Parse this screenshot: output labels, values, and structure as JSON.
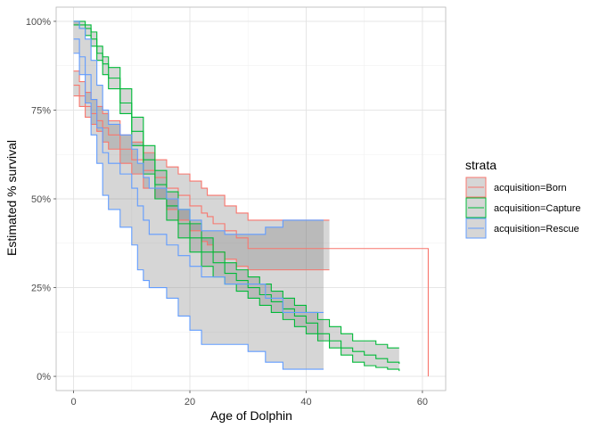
{
  "chart_data": {
    "type": "line",
    "xlabel": "Age of Dolphin",
    "ylabel": "Estimated % survival",
    "xlim": [
      -3.0,
      64.0
    ],
    "ylim": [
      -0.04,
      1.04
    ],
    "x_ticks": [
      0,
      20,
      40,
      60
    ],
    "x_minor_ticks": [
      10,
      30,
      50
    ],
    "y_ticks": [
      0,
      0.25,
      0.5,
      0.75,
      1.0
    ],
    "y_minor_ticks": [
      0.125,
      0.375,
      0.625,
      0.875
    ],
    "x_tick_labels": [
      "0",
      "20",
      "40",
      "60"
    ],
    "y_tick_labels": [
      "0%",
      "25%",
      "50%",
      "75%",
      "100%"
    ],
    "grid": true,
    "legend": {
      "title": "strata",
      "position": "right"
    },
    "series": [
      {
        "name": "acquisition=Born",
        "color": "#f8766d",
        "x": [
          0,
          1,
          2,
          3,
          4,
          5,
          6,
          8,
          10,
          12,
          14,
          16,
          18,
          20,
          22,
          23,
          24,
          26,
          28,
          30,
          44,
          61
        ],
        "y": [
          0.82,
          0.79,
          0.76,
          0.74,
          0.72,
          0.7,
          0.68,
          0.64,
          0.61,
          0.58,
          0.56,
          0.53,
          0.51,
          0.48,
          0.46,
          0.45,
          0.43,
          0.41,
          0.39,
          0.36,
          0.36,
          0.0
        ],
        "lower": [
          0.79,
          0.76,
          0.73,
          0.71,
          0.69,
          0.66,
          0.64,
          0.6,
          0.57,
          0.53,
          0.5,
          0.47,
          0.44,
          0.41,
          0.38,
          0.37,
          0.35,
          0.33,
          0.31,
          0.3,
          0.3,
          null
        ],
        "upper": [
          0.86,
          0.83,
          0.8,
          0.78,
          0.76,
          0.74,
          0.72,
          0.68,
          0.66,
          0.63,
          0.61,
          0.59,
          0.57,
          0.55,
          0.53,
          0.51,
          0.51,
          0.48,
          0.46,
          0.44,
          0.44,
          null
        ]
      },
      {
        "name": "acquisition=Capture",
        "color": "#00ba38",
        "x": [
          0,
          1,
          2,
          3,
          4,
          5,
          6,
          8,
          10,
          12,
          14,
          16,
          18,
          20,
          22,
          24,
          26,
          28,
          30,
          32,
          34,
          36,
          38,
          40,
          42,
          44,
          46,
          48,
          50,
          52,
          54,
          56
        ],
        "y": [
          1.0,
          0.99,
          0.98,
          0.95,
          0.91,
          0.88,
          0.84,
          0.77,
          0.69,
          0.61,
          0.54,
          0.48,
          0.43,
          0.39,
          0.35,
          0.32,
          0.29,
          0.27,
          0.25,
          0.23,
          0.21,
          0.19,
          0.17,
          0.15,
          0.12,
          0.1,
          0.08,
          0.07,
          0.06,
          0.05,
          0.04,
          0.035
        ],
        "lower": [
          0.99,
          0.98,
          0.96,
          0.93,
          0.89,
          0.85,
          0.81,
          0.74,
          0.65,
          0.57,
          0.5,
          0.44,
          0.39,
          0.35,
          0.31,
          0.28,
          0.26,
          0.24,
          0.22,
          0.2,
          0.18,
          0.16,
          0.14,
          0.12,
          0.1,
          0.08,
          0.06,
          0.04,
          0.03,
          0.025,
          0.02,
          0.015
        ],
        "upper": [
          1.0,
          1.0,
          0.99,
          0.97,
          0.93,
          0.9,
          0.87,
          0.81,
          0.73,
          0.65,
          0.58,
          0.52,
          0.47,
          0.43,
          0.39,
          0.35,
          0.32,
          0.3,
          0.28,
          0.26,
          0.24,
          0.22,
          0.2,
          0.18,
          0.16,
          0.14,
          0.12,
          0.1,
          0.1,
          0.09,
          0.08,
          0.08
        ]
      },
      {
        "name": "acquisition=Rescue",
        "color": "#619cff",
        "x": [
          0,
          1,
          2,
          3,
          4,
          5,
          6,
          8,
          10,
          11,
          12,
          13,
          14,
          16,
          18,
          20,
          22,
          24,
          26,
          28,
          30,
          33,
          36,
          40,
          43
        ],
        "y": [
          0.95,
          0.9,
          0.85,
          0.78,
          0.7,
          0.63,
          0.6,
          0.57,
          0.53,
          0.48,
          0.44,
          0.4,
          0.4,
          0.37,
          0.34,
          0.31,
          0.28,
          0.28,
          0.26,
          0.26,
          0.26,
          0.22,
          0.18,
          0.18,
          0.18
        ],
        "lower": [
          0.91,
          0.85,
          0.77,
          0.68,
          0.6,
          0.51,
          0.47,
          0.42,
          0.37,
          0.3,
          0.27,
          0.25,
          0.25,
          0.22,
          0.17,
          0.13,
          0.09,
          0.09,
          0.09,
          0.09,
          0.07,
          0.04,
          0.02,
          0.02,
          0.02
        ],
        "upper": [
          1.0,
          0.98,
          0.95,
          0.89,
          0.82,
          0.75,
          0.71,
          0.68,
          0.64,
          0.6,
          0.56,
          0.53,
          0.53,
          0.5,
          0.47,
          0.44,
          0.41,
          0.41,
          0.4,
          0.4,
          0.4,
          0.42,
          0.44,
          0.44,
          0.44
        ]
      }
    ]
  }
}
